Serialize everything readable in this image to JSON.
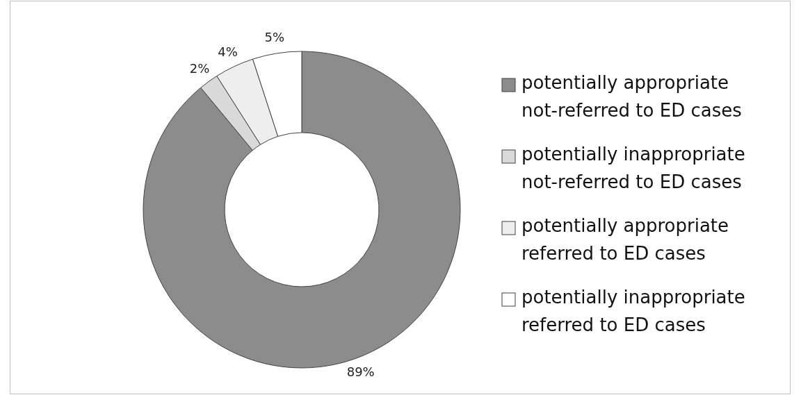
{
  "chart_data": {
    "type": "donut",
    "categories": [
      "potentially appropriate not-referred to ED cases",
      "potentially inappropriate not-referred to ED cases",
      "potentially appropriate referred to ED cases",
      "potentially inappropriate referred to ED cases"
    ],
    "values": [
      89,
      2,
      4,
      5
    ],
    "colors": [
      "#8c8c8c",
      "#d9d9d9",
      "#eeeeee",
      "#ffffff"
    ],
    "value_labels": [
      "89%",
      "2%",
      "4%",
      "5%"
    ],
    "legend": "right"
  }
}
